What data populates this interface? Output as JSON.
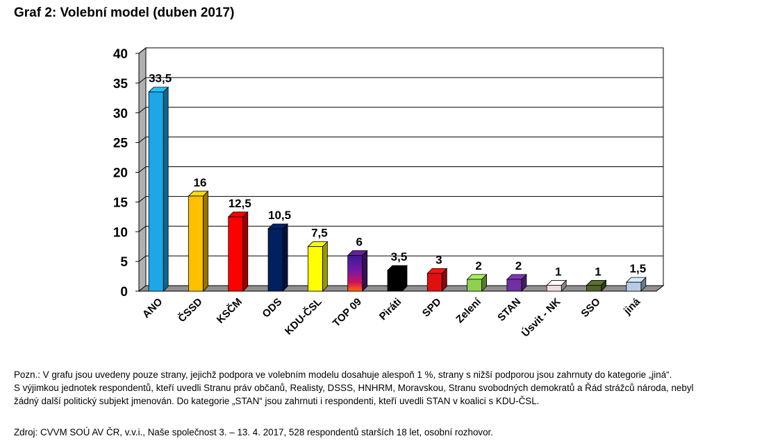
{
  "title": "Graf 2: Volební model (duben 2017)",
  "chart_data": {
    "type": "bar",
    "categories": [
      "ANO",
      "ČSSD",
      "KSČM",
      "ODS",
      "KDU-ČSL",
      "TOP 09",
      "Piráti",
      "SPD",
      "Zelení",
      "STAN",
      "Úsvit - NK",
      "SSO",
      "jiná"
    ],
    "values": [
      33.5,
      16,
      12.5,
      10.5,
      7.5,
      6,
      3.5,
      3,
      2,
      2,
      1,
      1,
      1.5
    ],
    "value_labels": [
      "33,5",
      "16",
      "12,5",
      "10,5",
      "7,5",
      "6",
      "3,5",
      "3",
      "2",
      "2",
      "1",
      "1",
      "1,5"
    ],
    "colors": [
      "#1ea7e8",
      "#ffc000",
      "#ff0000",
      "#002060",
      "#ffff00",
      "#5a1a8a",
      "#000000",
      "#e01010",
      "#8fd14f",
      "#7030a0",
      "#f2dcdb",
      "#4f6228",
      "#b8cce4"
    ],
    "yticks": [
      "0",
      "5",
      "10",
      "15",
      "20",
      "25",
      "30",
      "35",
      "40"
    ],
    "ylim": [
      0,
      40
    ],
    "grid": true,
    "legend": "none",
    "xlabel": "",
    "ylabel": ""
  },
  "note": {
    "line1": "Pozn.: V grafu jsou uvedeny pouze strany, jejichž podpora ve volebním modelu dosahuje alespoň 1 %, strany s nižší podporou jsou zahrnuty do kategorie „jiná“.",
    "line2": "S výjimkou jednotek respondentů, kteří uvedli Stranu práv občanů, Realisty, DSSS, HNHRM, Moravskou, Stranu svobodných demokratů a Řád strážců národa, nebyl",
    "line3": "žádný další politický subjekt jmenován. Do kategorie „STAN“ jsou zahrnuti i respondenti, kteří uvedli STAN v koalici s KDU-ČSL."
  },
  "source": "Zdroj: CVVM SOÚ AV ČR, v.v.i., Naše společnost 3. – 13. 4. 2017, 528 respondentů starších 18 let, osobní rozhovor."
}
